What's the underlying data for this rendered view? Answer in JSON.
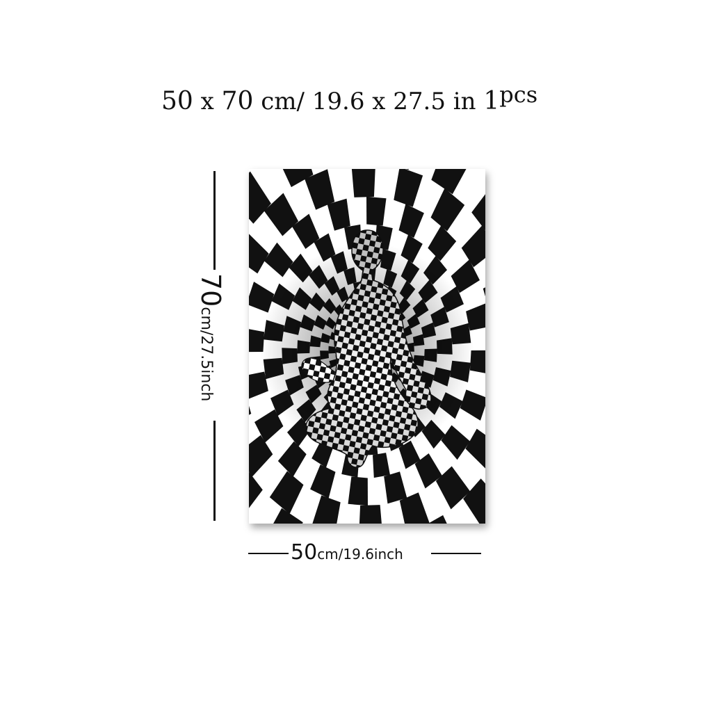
{
  "title": {
    "w": "50",
    "x1": " x ",
    "h": "70",
    "cm": " cm/ ",
    "win": "19.6",
    "x2": " x ",
    "hin": "27.5",
    "in": " in ",
    "qty": "1",
    "pcs": "pcs"
  },
  "height_label": {
    "num": "70",
    "rest": "cm/27.5inch"
  },
  "width_label": {
    "num": "50",
    "rest": "cm/19.6inch"
  },
  "artwork": {
    "subject": "checkered-figure-in-checkered-vortex",
    "colors": {
      "dark": "#111111",
      "light": "#ffffff"
    }
  }
}
